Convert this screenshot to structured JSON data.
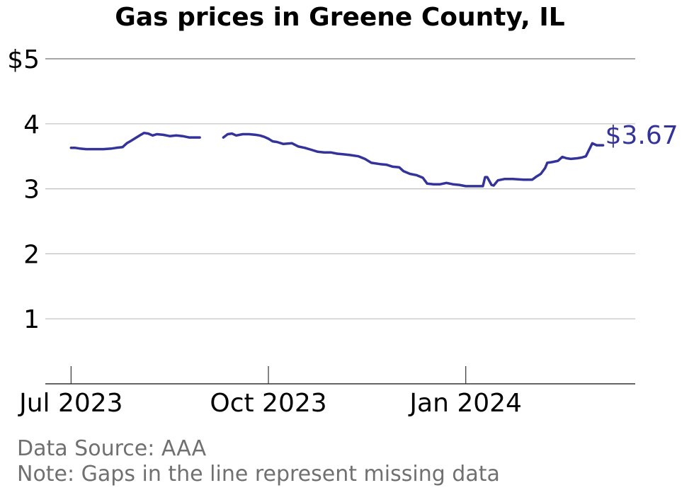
{
  "title": "Gas prices in Greene County, IL",
  "footer": {
    "source": "Data Source: AAA",
    "note": "Note: Gaps in the line represent missing data"
  },
  "colors": {
    "line": "#33339a",
    "grid": "#bfbfbf",
    "axis": "#333333",
    "footer": "#707070"
  },
  "chart_data": {
    "type": "line",
    "title": "Gas prices in Greene County, IL",
    "xlabel": "",
    "ylabel": "",
    "ylim": [
      0,
      5
    ],
    "xlim": [
      "2023-06-19",
      "2024-03-20"
    ],
    "y_ticks": [
      {
        "value": 1,
        "label": "1"
      },
      {
        "value": 2,
        "label": "2"
      },
      {
        "value": 3,
        "label": "3"
      },
      {
        "value": 4,
        "label": "4"
      },
      {
        "value": 5,
        "label": "$5"
      }
    ],
    "x_ticks": [
      {
        "date": "2023-07-01",
        "label": "Jul 2023"
      },
      {
        "date": "2023-10-01",
        "label": "Oct 2023"
      },
      {
        "date": "2024-01-01",
        "label": "Jan 2024"
      }
    ],
    "grid": "horizontal",
    "end_label": "$3.67",
    "segments": [
      [
        [
          "2023-07-01",
          3.63
        ],
        [
          "2023-07-03",
          3.63
        ],
        [
          "2023-07-05",
          3.62
        ],
        [
          "2023-07-08",
          3.61
        ],
        [
          "2023-07-12",
          3.61
        ],
        [
          "2023-07-16",
          3.61
        ],
        [
          "2023-07-20",
          3.62
        ],
        [
          "2023-07-22",
          3.63
        ],
        [
          "2023-07-25",
          3.64
        ],
        [
          "2023-07-27",
          3.7
        ],
        [
          "2023-07-29",
          3.74
        ],
        [
          "2023-07-31",
          3.78
        ],
        [
          "2023-08-02",
          3.82
        ],
        [
          "2023-08-04",
          3.86
        ],
        [
          "2023-08-06",
          3.85
        ],
        [
          "2023-08-08",
          3.82
        ],
        [
          "2023-08-10",
          3.84
        ],
        [
          "2023-08-13",
          3.83
        ],
        [
          "2023-08-16",
          3.81
        ],
        [
          "2023-08-19",
          3.82
        ],
        [
          "2023-08-22",
          3.81
        ],
        [
          "2023-08-25",
          3.79
        ],
        [
          "2023-08-28",
          3.79
        ],
        [
          "2023-08-30",
          3.79
        ]
      ],
      [
        [
          "2023-09-10",
          3.79
        ],
        [
          "2023-09-12",
          3.84
        ],
        [
          "2023-09-14",
          3.85
        ],
        [
          "2023-09-16",
          3.82
        ],
        [
          "2023-09-19",
          3.84
        ],
        [
          "2023-09-22",
          3.84
        ],
        [
          "2023-09-25",
          3.83
        ],
        [
          "2023-09-27",
          3.82
        ],
        [
          "2023-09-29",
          3.8
        ],
        [
          "2023-10-01",
          3.77
        ],
        [
          "2023-10-03",
          3.73
        ],
        [
          "2023-10-05",
          3.72
        ],
        [
          "2023-10-08",
          3.69
        ],
        [
          "2023-10-12",
          3.7
        ],
        [
          "2023-10-15",
          3.65
        ],
        [
          "2023-10-18",
          3.63
        ],
        [
          "2023-10-21",
          3.6
        ],
        [
          "2023-10-24",
          3.57
        ],
        [
          "2023-10-27",
          3.56
        ],
        [
          "2023-10-30",
          3.56
        ],
        [
          "2023-11-02",
          3.54
        ],
        [
          "2023-11-05",
          3.53
        ],
        [
          "2023-11-08",
          3.52
        ],
        [
          "2023-11-12",
          3.5
        ],
        [
          "2023-11-15",
          3.46
        ],
        [
          "2023-11-18",
          3.4
        ],
        [
          "2023-11-22",
          3.38
        ],
        [
          "2023-11-25",
          3.37
        ],
        [
          "2023-11-28",
          3.34
        ],
        [
          "2023-12-01",
          3.33
        ],
        [
          "2023-12-03",
          3.27
        ],
        [
          "2023-12-06",
          3.23
        ],
        [
          "2023-12-09",
          3.21
        ],
        [
          "2023-12-12",
          3.17
        ],
        [
          "2023-12-14",
          3.08
        ],
        [
          "2023-12-17",
          3.07
        ],
        [
          "2023-12-20",
          3.07
        ],
        [
          "2023-12-23",
          3.09
        ],
        [
          "2023-12-26",
          3.07
        ],
        [
          "2023-12-29",
          3.06
        ],
        [
          "2024-01-01",
          3.04
        ],
        [
          "2024-01-04",
          3.04
        ],
        [
          "2024-01-07",
          3.04
        ],
        [
          "2024-01-09",
          3.04
        ],
        [
          "2024-01-10",
          3.18
        ],
        [
          "2024-01-11",
          3.18
        ],
        [
          "2024-01-13",
          3.06
        ],
        [
          "2024-01-14",
          3.05
        ],
        [
          "2024-01-16",
          3.13
        ],
        [
          "2024-01-19",
          3.15
        ],
        [
          "2024-01-23",
          3.15
        ],
        [
          "2024-01-28",
          3.14
        ],
        [
          "2024-02-01",
          3.14
        ],
        [
          "2024-02-03",
          3.19
        ],
        [
          "2024-02-05",
          3.23
        ],
        [
          "2024-02-07",
          3.32
        ],
        [
          "2024-02-08",
          3.4
        ],
        [
          "2024-02-10",
          3.41
        ],
        [
          "2024-02-13",
          3.43
        ],
        [
          "2024-02-15",
          3.49
        ],
        [
          "2024-02-17",
          3.47
        ],
        [
          "2024-02-19",
          3.46
        ],
        [
          "2024-02-22",
          3.47
        ],
        [
          "2024-02-24",
          3.48
        ],
        [
          "2024-02-26",
          3.5
        ],
        [
          "2024-02-29",
          3.7
        ],
        [
          "2024-03-02",
          3.67
        ],
        [
          "2024-03-05",
          3.67
        ]
      ]
    ]
  }
}
